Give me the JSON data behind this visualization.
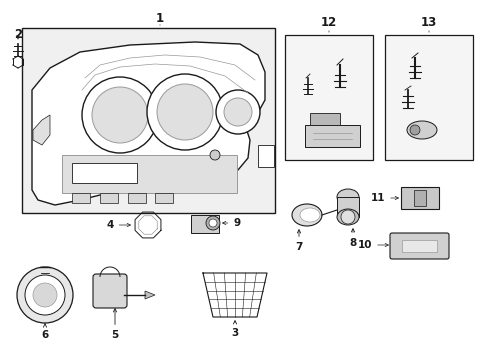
{
  "bg_color": "#ffffff",
  "figure_size": [
    4.89,
    3.6
  ],
  "dpi": 100,
  "dark": "#1a1a1a",
  "gray": "#999999",
  "lightgray": "#d8d8d8",
  "boxgray": "#e8e8e8"
}
